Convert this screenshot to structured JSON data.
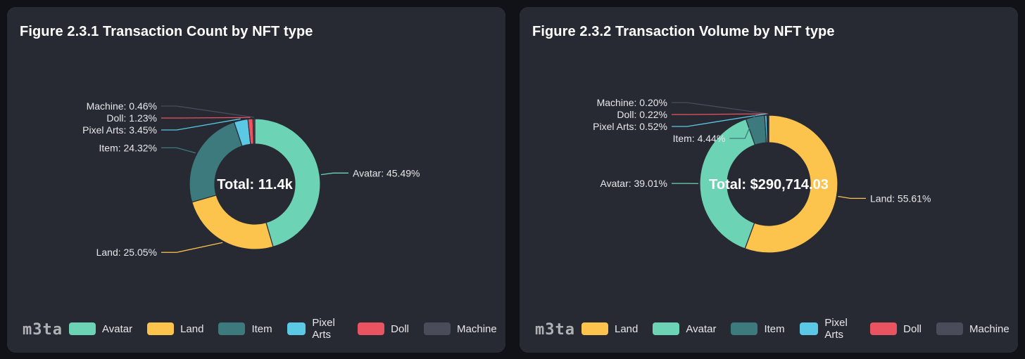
{
  "colors": {
    "Avatar": "#6dd3b5",
    "Land": "#fcc34d",
    "Item": "#3d7a7d",
    "Pixel Arts": "#5bc8e6",
    "Doll": "#ea5461",
    "Machine": "#4a4d59"
  },
  "watermark": "m3ta",
  "chart_data": [
    {
      "type": "pie",
      "title": "Figure 2.3.1 Transaction Count by NFT type",
      "center_label": "Total: 11.4k",
      "categories": [
        "Avatar",
        "Land",
        "Item",
        "Pixel Arts",
        "Doll",
        "Machine"
      ],
      "values": [
        45.49,
        25.05,
        24.32,
        3.45,
        1.23,
        0.46
      ],
      "value_labels": [
        "Avatar: 45.49%",
        "Land: 25.05%",
        "Item: 24.32%",
        "Pixel Arts: 3.45%",
        "Doll: 1.23%",
        "Machine: 0.46%"
      ],
      "legend": [
        "Avatar",
        "Land",
        "Item",
        "Pixel Arts",
        "Doll",
        "Machine"
      ],
      "legend_position": "bottom-left"
    },
    {
      "type": "pie",
      "title": "Figure 2.3.2 Transaction Volume by NFT type",
      "center_label": "Total: $290,714.03",
      "categories": [
        "Land",
        "Avatar",
        "Item",
        "Pixel Arts",
        "Doll",
        "Machine"
      ],
      "values": [
        55.61,
        39.01,
        4.44,
        0.52,
        0.22,
        0.2
      ],
      "value_labels": [
        "Land: 55.61%",
        "Avatar: 39.01%",
        "Item: 4.44%",
        "Pixel Arts: 0.52%",
        "Doll: 0.22%",
        "Machine: 0.20%"
      ],
      "legend": [
        "Land",
        "Avatar",
        "Item",
        "Pixel Arts",
        "Doll",
        "Machine"
      ],
      "legend_position": "bottom-left"
    }
  ]
}
